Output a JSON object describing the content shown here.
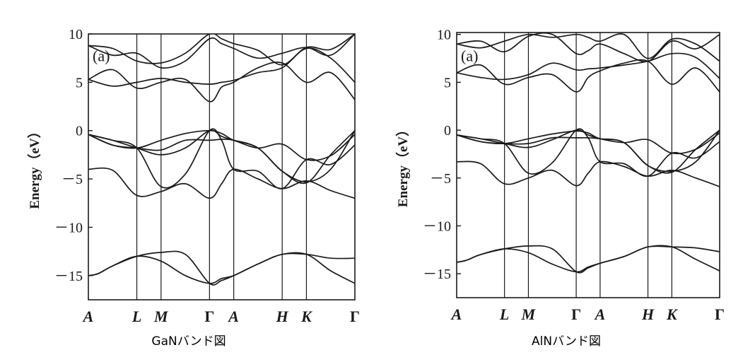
{
  "chart_data": [
    {
      "type": "line",
      "caption": "GaNバンド図",
      "panel_label": "(a)",
      "ylabel": "Energy（eV）",
      "ylim": [
        -17.5,
        10
      ],
      "y_ticks": [
        10,
        5,
        0,
        -5,
        -10,
        -15
      ],
      "y_tick_labels": [
        "10",
        "5",
        "0",
        "－5",
        "－10",
        "－15"
      ],
      "k_points": [
        {
          "label": "A",
          "pos": 0
        },
        {
          "label": "L",
          "pos": 1.0
        },
        {
          "label": "M",
          "pos": 1.5
        },
        {
          "label": "Γ",
          "pos": 2.5
        },
        {
          "label": "A",
          "pos": 3.0
        },
        {
          "label": "H",
          "pos": 4.0
        },
        {
          "label": "K",
          "pos": 4.5
        },
        {
          "label": "Γ",
          "pos": 5.5
        }
      ],
      "xlim": [
        0,
        5.5
      ],
      "series": [
        {
          "x": [
            0,
            0.2,
            0.5,
            1.0,
            1.5,
            2.0,
            2.5,
            2.75,
            3.0,
            3.5,
            4.0,
            4.5,
            5.0,
            5.5
          ],
          "y": [
            -15.0,
            -14.8,
            -14.0,
            -13.0,
            -12.6,
            -12.8,
            -15.8,
            -15.5,
            -15.0,
            -13.8,
            -12.8,
            -12.8,
            -13.2,
            -13.2
          ]
        },
        {
          "x": [
            0,
            0.2,
            0.5,
            1.0,
            1.5,
            2.0,
            2.5,
            2.75,
            3.0,
            3.5,
            4.0,
            4.5,
            5.0,
            5.5
          ],
          "y": [
            -15.0,
            -14.8,
            -14.0,
            -13.0,
            -13.5,
            -15.0,
            -15.8,
            -15.3,
            -15.0,
            -13.8,
            -12.8,
            -12.8,
            -14.5,
            -15.8
          ]
        },
        {
          "x": [
            0,
            0.5,
            1.0,
            1.5,
            2.0,
            2.5,
            2.75,
            3.0,
            3.5,
            4.0,
            4.5,
            5.0,
            5.5
          ],
          "y": [
            -4.0,
            -4.1,
            -6.7,
            -6.3,
            -5.5,
            -7.0,
            -5.5,
            -4.0,
            -5.0,
            -6.0,
            -5.2,
            -6.2,
            -7.0
          ]
        },
        {
          "x": [
            0,
            0.5,
            1.0,
            1.5,
            2.0,
            2.5,
            2.75,
            3.0,
            3.5,
            4.0,
            4.5,
            5.0,
            5.5
          ],
          "y": [
            -0.4,
            -1.0,
            -1.8,
            -5.8,
            -4.5,
            0,
            -1.0,
            -4.0,
            -4.2,
            -6.0,
            -3.0,
            -3.5,
            -1.5
          ]
        },
        {
          "x": [
            0,
            0.5,
            1.0,
            1.5,
            2.0,
            2.5,
            2.75,
            3.0,
            3.5,
            4.0,
            4.5,
            5.0,
            5.5
          ],
          "y": [
            -0.4,
            -1.0,
            -1.8,
            -2.5,
            -1.8,
            0,
            -0.6,
            -1.0,
            -1.8,
            -1.4,
            -3.0,
            -2.6,
            -0.4
          ]
        },
        {
          "x": [
            0,
            0.5,
            1.0,
            1.5,
            2.0,
            2.5,
            2.75,
            3.0,
            3.5,
            4.0,
            4.5,
            5.0,
            5.5
          ],
          "y": [
            -0.4,
            -1.5,
            -1.8,
            -1.0,
            -0.3,
            0,
            -0.3,
            -1.0,
            -1.8,
            -4.2,
            -5.3,
            -4.0,
            0
          ]
        },
        {
          "x": [
            0,
            0.5,
            1.0,
            1.5,
            2.0,
            2.5,
            2.75,
            3.0,
            3.5,
            4.0,
            4.5,
            5.0,
            5.5
          ],
          "y": [
            -0.4,
            -1.5,
            -1.8,
            -2.0,
            -1.0,
            -1.0,
            -0.9,
            -1.0,
            -1.8,
            -4.2,
            -5.4,
            -2.5,
            0
          ]
        },
        {
          "x": [
            0,
            0.5,
            1.0,
            1.5,
            2.0,
            2.5,
            2.75,
            3.0,
            3.5,
            4.0,
            4.5,
            5.0,
            5.5
          ],
          "y": [
            5.3,
            6.3,
            4.4,
            5.0,
            5.3,
            3.0,
            4.5,
            5.0,
            6.5,
            7.0,
            5.0,
            6.0,
            3.2
          ]
        },
        {
          "x": [
            0,
            0.5,
            1.0,
            1.5,
            2.0,
            2.5,
            2.75,
            3.0,
            3.5,
            4.0,
            4.5,
            5.0,
            5.5
          ],
          "y": [
            5.3,
            4.6,
            5.0,
            5.4,
            5.0,
            4.8,
            5.0,
            5.2,
            6.0,
            6.5,
            8.5,
            7.5,
            5.0
          ]
        },
        {
          "x": [
            0,
            0.5,
            1.0,
            1.5,
            2.0,
            2.5,
            2.75,
            3.0,
            3.5,
            4.0,
            4.5,
            5.0,
            5.5
          ],
          "y": [
            8.8,
            7.8,
            8.0,
            6.5,
            7.2,
            9.5,
            9.0,
            8.5,
            7.5,
            8.0,
            8.6,
            7.8,
            10.0
          ]
        },
        {
          "x": [
            0,
            0.5,
            1.0,
            1.5,
            2.0,
            2.5,
            2.75,
            3.0,
            3.5,
            4.0,
            4.5,
            5.0,
            5.5
          ],
          "y": [
            8.8,
            8.5,
            7.2,
            7.0,
            8.0,
            10.0,
            9.5,
            9.0,
            8.3,
            6.8,
            8.6,
            8.4,
            10.0
          ]
        }
      ]
    },
    {
      "type": "line",
      "caption": "AlNバンド図",
      "panel_label": "(a)",
      "ylabel": "Energy（eV）",
      "ylim": [
        -17.5,
        10.2
      ],
      "y_ticks": [
        10,
        5,
        0,
        -5,
        -10,
        -15
      ],
      "y_tick_labels": [
        "10",
        "5",
        "0",
        "－5",
        "－10",
        "－15"
      ],
      "k_points": [
        {
          "label": "A",
          "pos": 0
        },
        {
          "label": "L",
          "pos": 1.0
        },
        {
          "label": "M",
          "pos": 1.5
        },
        {
          "label": "Γ",
          "pos": 2.5
        },
        {
          "label": "A",
          "pos": 3.0
        },
        {
          "label": "H",
          "pos": 4.0
        },
        {
          "label": "K",
          "pos": 4.5
        },
        {
          "label": "Γ",
          "pos": 5.5
        }
      ],
      "xlim": [
        0,
        5.5
      ],
      "series": [
        {
          "x": [
            0,
            0.2,
            0.5,
            1.0,
            1.5,
            2.0,
            2.5,
            2.75,
            3.0,
            3.5,
            4.0,
            4.5,
            5.0,
            5.5
          ],
          "y": [
            -13.8,
            -13.6,
            -13.0,
            -12.4,
            -12.1,
            -12.4,
            -14.8,
            -14.4,
            -13.9,
            -13.2,
            -12.2,
            -12.2,
            -12.3,
            -12.7
          ]
        },
        {
          "x": [
            0,
            0.2,
            0.5,
            1.0,
            1.5,
            2.0,
            2.5,
            2.75,
            3.0,
            3.5,
            4.0,
            4.5,
            5.0,
            5.5
          ],
          "y": [
            -13.8,
            -13.6,
            -13.0,
            -12.4,
            -12.8,
            -14.0,
            -14.8,
            -14.3,
            -13.9,
            -13.2,
            -12.2,
            -12.2,
            -13.5,
            -14.7
          ]
        },
        {
          "x": [
            0,
            0.5,
            1.0,
            1.5,
            2.0,
            2.5,
            2.75,
            3.0,
            3.5,
            4.0,
            4.5,
            5.0,
            5.5
          ],
          "y": [
            -3.3,
            -3.5,
            -5.6,
            -5.0,
            -4.2,
            -5.8,
            -4.5,
            -3.3,
            -3.8,
            -4.8,
            -4.2,
            -5.0,
            -5.9
          ]
        },
        {
          "x": [
            0,
            0.5,
            1.0,
            1.5,
            2.0,
            2.5,
            2.75,
            3.0,
            3.5,
            4.0,
            4.5,
            5.0,
            5.5
          ],
          "y": [
            -0.5,
            -0.9,
            -1.4,
            -4.5,
            -3.4,
            0,
            -0.8,
            -3.3,
            -3.5,
            -4.8,
            -2.4,
            -2.9,
            -1.2
          ]
        },
        {
          "x": [
            0,
            0.5,
            1.0,
            1.5,
            2.0,
            2.5,
            2.75,
            3.0,
            3.5,
            4.0,
            4.5,
            5.0,
            5.5
          ],
          "y": [
            -0.5,
            -0.9,
            -1.4,
            -1.8,
            -1.0,
            0,
            -0.5,
            -0.9,
            -1.3,
            -1.0,
            -2.4,
            -2.0,
            -0.3
          ]
        },
        {
          "x": [
            0,
            0.5,
            1.0,
            1.5,
            2.0,
            2.5,
            2.75,
            3.0,
            3.5,
            4.0,
            4.5,
            5.0,
            5.5
          ],
          "y": [
            -0.5,
            -1.2,
            -1.4,
            -0.9,
            -0.4,
            -0.1,
            -0.3,
            -0.9,
            -1.3,
            -3.7,
            -4.3,
            -3.3,
            0
          ]
        },
        {
          "x": [
            0,
            0.5,
            1.0,
            1.5,
            2.0,
            2.5,
            2.75,
            3.0,
            3.5,
            4.0,
            4.5,
            5.0,
            5.5
          ],
          "y": [
            -0.5,
            -1.2,
            -1.4,
            -1.4,
            -0.8,
            -0.8,
            -0.8,
            -0.9,
            -1.3,
            -3.7,
            -4.4,
            -2.0,
            0
          ]
        },
        {
          "x": [
            0,
            0.5,
            1.0,
            1.5,
            2.0,
            2.5,
            2.75,
            3.0,
            3.5,
            4.0,
            4.5,
            5.0,
            5.5
          ],
          "y": [
            6.0,
            6.8,
            4.8,
            5.5,
            5.8,
            4.0,
            5.5,
            6.2,
            7.0,
            7.2,
            4.8,
            6.5,
            4.0
          ]
        },
        {
          "x": [
            0,
            0.5,
            1.0,
            1.5,
            2.0,
            2.5,
            2.75,
            3.0,
            3.5,
            4.0,
            4.5,
            5.0,
            5.5
          ],
          "y": [
            6.0,
            5.5,
            5.3,
            5.8,
            7.0,
            6.3,
            6.4,
            6.5,
            6.8,
            7.2,
            8.0,
            7.6,
            5.4
          ]
        },
        {
          "x": [
            0,
            0.5,
            1.0,
            1.5,
            2.0,
            2.5,
            2.75,
            3.0,
            3.5,
            4.0,
            4.5,
            5.0,
            5.5
          ],
          "y": [
            9.0,
            9.3,
            8.2,
            9.8,
            10.0,
            8.0,
            8.3,
            9.0,
            8.0,
            7.2,
            9.3,
            8.5,
            10.0
          ]
        },
        {
          "x": [
            0,
            0.5,
            1.0,
            1.5,
            2.0,
            2.5,
            2.75,
            3.0,
            3.5,
            4.0,
            4.5,
            5.0,
            5.5
          ],
          "y": [
            9.0,
            8.6,
            9.3,
            10.0,
            9.7,
            10.0,
            9.7,
            9.3,
            10.0,
            7.5,
            9.5,
            9.0,
            7.2
          ]
        }
      ]
    }
  ],
  "colors": {
    "line": "#1a1a1a",
    "background": "#ffffff"
  }
}
